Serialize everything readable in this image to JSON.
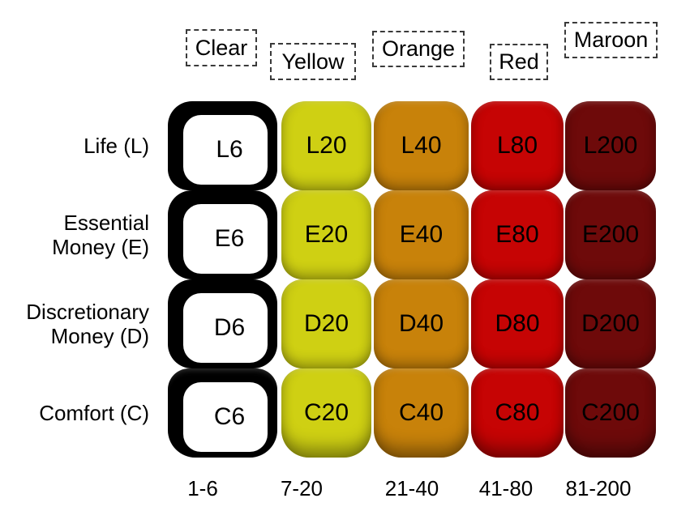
{
  "diagram": {
    "columns": [
      {
        "header": "Clear",
        "range": "1-6",
        "color": "#ffffff",
        "outline_color": "#000000"
      },
      {
        "header": "Yellow",
        "range": "7-20",
        "color": "#cfd013"
      },
      {
        "header": "Orange",
        "range": "21-40",
        "color": "#c8820a"
      },
      {
        "header": "Red",
        "range": "41-80",
        "color": "#c60404"
      },
      {
        "header": "Maroon",
        "range": "81-200",
        "color": "#6e0a0a"
      }
    ],
    "rows": [
      {
        "label": "Life (L)"
      },
      {
        "label": "Essential Money (E)"
      },
      {
        "label": "Discretionary Money (D)"
      },
      {
        "label": "Comfort (C)"
      }
    ],
    "cells": [
      [
        "L6",
        "L20",
        "L40",
        "L80",
        "L200"
      ],
      [
        "E6",
        "E20",
        "E40",
        "E80",
        "E200"
      ],
      [
        "D6",
        "D20",
        "D40",
        "D80",
        "D200"
      ],
      [
        "C6",
        "C20",
        "C40",
        "C80",
        "C200"
      ]
    ],
    "text_color": "#000000"
  }
}
